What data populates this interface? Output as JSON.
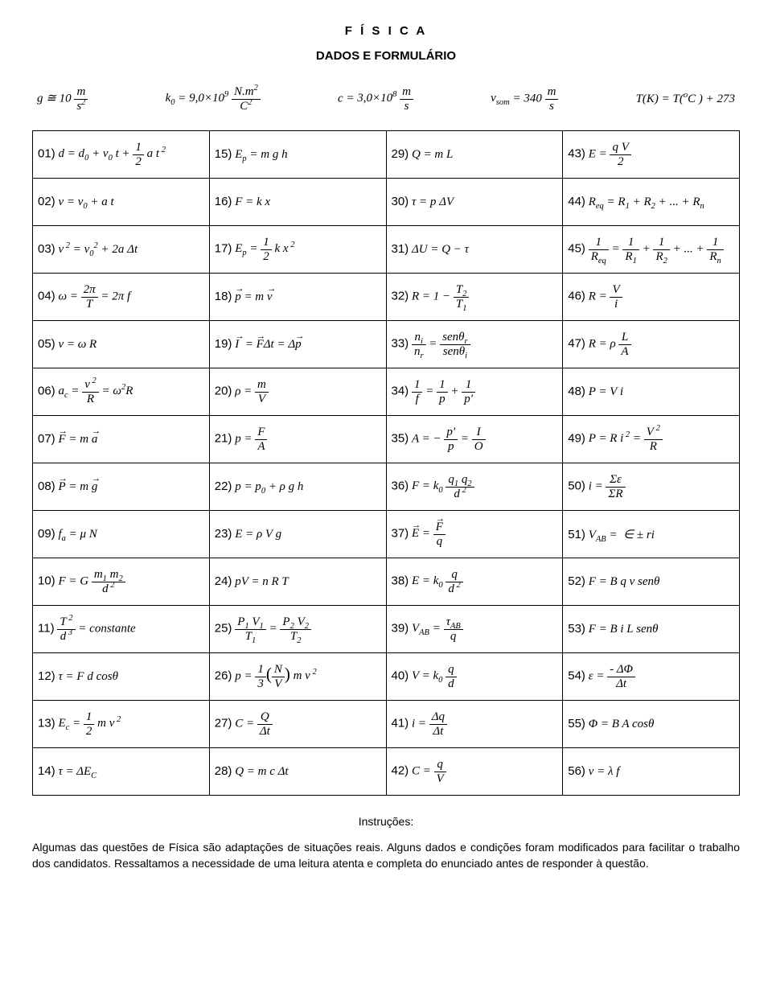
{
  "title": "F Í S I C A",
  "subtitle": "DADOS E FORMULÁRIO",
  "constants": [
    "g ≅ 10 m/s²",
    "k₀ = 9,0×10⁹ N.m²/C²",
    "c = 3,0×10⁸ m/s",
    "vₛₒₘ = 340 m/s",
    "T(K) = T(°C) + 273"
  ],
  "table": {
    "rows": 14,
    "cols": 4,
    "cells": {
      "r1c1": {
        "n": "01)",
        "html": "<span class='f'>d = d<sub>0</sub> + v<sub>0</sub> t + </span><span class='frac'><span class='top'>1</span><span class='bot'>2</span></span><span class='f'> a t<sup> 2</sup></span>"
      },
      "r1c2": {
        "n": "15)",
        "html": "<span class='f'>E<sub>p</sub> = m g h</span>"
      },
      "r1c3": {
        "n": "29)",
        "html": "<span class='f'>Q = m L</span>"
      },
      "r1c4": {
        "n": "43)",
        "html": "<span class='f'>E = </span><span class='frac'><span class='top'>q V</span><span class='bot'>2</span></span>"
      },
      "r2c1": {
        "n": "02)",
        "html": "<span class='f'>v = v<sub>0</sub> + a t</span>"
      },
      "r2c2": {
        "n": "16)",
        "html": "<span class='f'>F = k x</span>"
      },
      "r2c3": {
        "n": "30)",
        "html": "<span class='f'>τ = p ΔV</span>"
      },
      "r2c4": {
        "n": "44)",
        "html": "<span class='f'>R<sub>eq</sub> = R<sub>1</sub> + R<sub>2</sub> + ... + R<sub>n</sub></span>"
      },
      "r3c1": {
        "n": "03)",
        "html": "<span class='f'>v<sup> 2</sup> = v<sub>0</sub><sup>2</sup> + 2a Δt</span>"
      },
      "r3c2": {
        "n": "17)",
        "html": "<span class='f'>E<sub>p</sub> = </span><span class='frac'><span class='top'>1</span><span class='bot'>2</span></span><span class='f'> k x<sup> 2</sup></span>"
      },
      "r3c3": {
        "n": "31)",
        "html": "<span class='f'>ΔU = Q − τ</span>"
      },
      "r3c4": {
        "n": "45)",
        "html": "<span class='frac'><span class='top'>1</span><span class='bot'>R<sub>eq</sub></span></span><span class='f'> = </span><span class='frac'><span class='top'>1</span><span class='bot'>R<sub>1</sub></span></span><span class='f'> + </span><span class='frac'><span class='top'>1</span><span class='bot'>R<sub>2</sub></span></span><span class='f'> + ... + </span><span class='frac'><span class='top'>1</span><span class='bot'>R<sub>n</sub></span></span>"
      },
      "r4c1": {
        "n": "04)",
        "html": "<span class='f'>ω = </span><span class='frac'><span class='top'>2π</span><span class='bot'>T</span></span><span class='f'> = 2π f</span>"
      },
      "r4c2": {
        "n": "18)",
        "html": "<span class='f'><span class='vec'>p</span> = m <span class='vec'>v</span></span>"
      },
      "r4c3": {
        "n": "32)",
        "html": "<span class='f'>R = 1 − </span><span class='frac'><span class='top'>T<sub>2</sub></span><span class='bot'>T<sub>1</sub></span></span>"
      },
      "r4c4": {
        "n": "46)",
        "html": "<span class='f'>R = </span><span class='frac'><span class='top'>V</span><span class='bot'>i</span></span>"
      },
      "r5c1": {
        "n": "05)",
        "html": "<span class='f'>v = ω R</span>"
      },
      "r5c2": {
        "n": "19)",
        "html": "<span class='f'><span class='vec'>I</span> &nbsp;= <span class='vec'>F</span>Δt = Δ<span class='vec'>p</span></span>"
      },
      "r5c3": {
        "n": "33)",
        "html": "<span class='frac'><span class='top'>n<sub>i</sub></span><span class='bot'>n<sub>r</sub></span></span><span class='f'> = </span><span class='frac'><span class='top'>senθ<sub>r</sub></span><span class='bot'>senθ<sub>i</sub></span></span>"
      },
      "r5c4": {
        "n": "47)",
        "html": "<span class='f'>R = ρ </span><span class='frac'><span class='top'>L</span><span class='bot'>A</span></span>"
      },
      "r6c1": {
        "n": "06)",
        "html": "<span class='f'>a<sub>c</sub> = </span><span class='frac'><span class='top'>v<sup> 2</sup></span><span class='bot'>R</span></span><span class='f'> = ω<sup>2</sup>R</span>"
      },
      "r6c2": {
        "n": "20)",
        "html": "<span class='f'>ρ = </span><span class='frac'><span class='top'>m</span><span class='bot'>V</span></span>"
      },
      "r6c3": {
        "n": "34)",
        "html": "<span class='frac'><span class='top'>1</span><span class='bot'>f</span></span><span class='f'> = </span><span class='frac'><span class='top'>1</span><span class='bot'>p</span></span><span class='f'> + </span><span class='frac'><span class='top'>1</span><span class='bot'>p′</span></span>"
      },
      "r6c4": {
        "n": "48)",
        "html": "<span class='f'>P = V i</span>"
      },
      "r7c1": {
        "n": "07)",
        "html": "<span class='f'><span class='vec'>F</span> = m <span class='vec'>a</span></span>"
      },
      "r7c2": {
        "n": "21)",
        "html": "<span class='f'>p = </span><span class='frac'><span class='top'>F</span><span class='bot'>A</span></span>"
      },
      "r7c3": {
        "n": "35)",
        "html": "<span class='f'>A = − </span><span class='frac'><span class='top'>p′</span><span class='bot'>p</span></span><span class='f'> = </span><span class='frac'><span class='top'>I</span><span class='bot'>O</span></span>"
      },
      "r7c4": {
        "n": "49)",
        "html": "<span class='f'>P = R i<sup> 2</sup> = </span><span class='frac'><span class='top'>V<sup> 2</sup></span><span class='bot'>R</span></span>"
      },
      "r8c1": {
        "n": "08)",
        "html": "<span class='f'><span class='vec'>P</span> = m <span class='vec'>g</span></span>"
      },
      "r8c2": {
        "n": "22)",
        "html": "<span class='f'>p = p<sub>0</sub> + ρ g h</span>"
      },
      "r8c3": {
        "n": "36)",
        "html": "<span class='f'>F = k<sub>0</sub> </span><span class='frac'><span class='top'>q<sub>1</sub> q<sub>2</sub></span><span class='bot'>d<sup> 2</sup></span></span>"
      },
      "r8c4": {
        "n": "50)",
        "html": "<span class='f'>i = </span><span class='frac'><span class='top'>Σε</span><span class='bot'>ΣR</span></span>"
      },
      "r9c1": {
        "n": "09)",
        "html": "<span class='f'>f<sub>a</sub> = μ N</span>"
      },
      "r9c2": {
        "n": "23)",
        "html": "<span class='f'>E = ρ V g</span>"
      },
      "r9c3": {
        "n": "37)",
        "html": "<span class='f'><span class='vec'>E</span> = </span><span class='frac'><span class='top'><span class='vec'>F</span></span><span class='bot'>q</span></span>"
      },
      "r9c4": {
        "n": "51)",
        "html": "<span class='f'>V<sub>AB</sub> = &nbsp;∈ ± ri</span>"
      },
      "r10c1": {
        "n": "10)",
        "html": "<span class='f'>F = G </span><span class='frac'><span class='top'>m<sub>1</sub> m<sub>2</sub></span><span class='bot'>d<sup> 2</sup></span></span>"
      },
      "r10c2": {
        "n": "24)",
        "html": "<span class='f'>pV = n R T</span>"
      },
      "r10c3": {
        "n": "38)",
        "html": "<span class='f'>E = k<sub>0</sub> </span><span class='frac'><span class='top'>q</span><span class='bot'>d<sup> 2</sup></span></span>"
      },
      "r10c4": {
        "n": "52)",
        "html": "<span class='f'>F = B q v senθ</span>"
      },
      "r11c1": {
        "n": "11)",
        "html": "<span class='frac'><span class='top'>T<sup> 2</sup></span><span class='bot'>d<sup> 3</sup></span></span><span class='f'> = constante</span>"
      },
      "r11c2": {
        "n": "25)",
        "html": "<span class='frac'><span class='top'>P<sub>1</sub> V<sub>1</sub></span><span class='bot'>T<sub>1</sub></span></span><span class='f'> = </span><span class='frac'><span class='top'>P<sub>2</sub> V<sub>2</sub></span><span class='bot'>T<sub>2</sub></span></span>"
      },
      "r11c3": {
        "n": "39)",
        "html": "<span class='f'>V<sub>AB</sub> = </span><span class='frac'><span class='top'>τ<sub>AB</sub></span><span class='bot'>q</span></span>"
      },
      "r11c4": {
        "n": "53)",
        "html": "<span class='f'>F = B i L senθ</span>"
      },
      "r12c1": {
        "n": "12)",
        "html": "<span class='f'>τ = F d cosθ</span>"
      },
      "r12c2": {
        "n": "26)",
        "html": "<span class='f'>p = </span><span class='frac'><span class='top'>1</span><span class='bot'>3</span></span><span style='font-size:1.4em;font-style:normal'>(</span><span class='frac'><span class='top'>N</span><span class='bot'>V</span></span><span style='font-size:1.4em;font-style:normal'>)</span><span class='f'> m v<sup> 2</sup></span>"
      },
      "r12c3": {
        "n": "40)",
        "html": "<span class='f'>V = k<sub>0</sub> </span><span class='frac'><span class='top'>q</span><span class='bot'>d</span></span>"
      },
      "r12c4": {
        "n": "54)",
        "html": "<span class='f'>ε = </span><span class='frac'><span class='top'>- ΔΦ</span><span class='bot'>Δt</span></span>"
      },
      "r13c1": {
        "n": "13)",
        "html": "<span class='f'>E<sub>c</sub> = </span><span class='frac'><span class='top'>1</span><span class='bot'>2</span></span><span class='f'> m v<sup> 2</sup></span>"
      },
      "r13c2": {
        "n": "27)",
        "html": "<span class='f'>C = </span><span class='frac'><span class='top'>Q</span><span class='bot'>Δt</span></span>"
      },
      "r13c3": {
        "n": "41)",
        "html": "<span class='f'>i = </span><span class='frac'><span class='top'>Δq</span><span class='bot'>Δt</span></span>"
      },
      "r13c4": {
        "n": "55)",
        "html": "<span class='f'>Φ = B A cosθ</span>"
      },
      "r14c1": {
        "n": "14)",
        "html": "<span class='f'>τ = ΔE<sub>C</sub></span>"
      },
      "r14c2": {
        "n": "28)",
        "html": "<span class='f'>Q = m c Δt</span>"
      },
      "r14c3": {
        "n": "42)",
        "html": "<span class='f'>C = </span><span class='frac'><span class='top'>q</span><span class='bot'>V</span></span>"
      },
      "r14c4": {
        "n": "56)",
        "html": "<span class='f'>v = λ f</span>"
      }
    }
  },
  "instructions_title": "Instruções:",
  "instructions_body": "Algumas das questões de Física são adaptações de situações reais. Alguns dados e condições foram modificados para facilitar o trabalho dos candidatos. Ressaltamos a necessidade de uma leitura atenta e completa do enunciado antes de responder à questão."
}
